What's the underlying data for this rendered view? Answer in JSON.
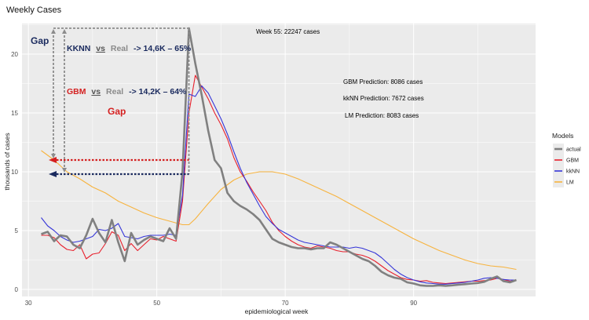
{
  "chart_data": {
    "type": "line",
    "title": "Weekly Cases",
    "xlabel": "epidemiological week",
    "ylabel": "thousands of cases",
    "xlim": [
      29,
      109
    ],
    "ylim": [
      -0.6,
      22.6
    ],
    "x_ticks": [
      30,
      50,
      70,
      90
    ],
    "y_ticks": [
      0,
      5,
      10,
      15,
      20
    ],
    "grid": true,
    "legend": {
      "title": "Models",
      "position": "right",
      "entries": [
        "actual",
        "GBM",
        "kkNN",
        "LM"
      ]
    },
    "colors": {
      "actual": "#808080",
      "GBM": "#e8212d",
      "kkNN": "#3636d8",
      "LM": "#f7b33e",
      "panel": "#ebebeb",
      "grid": "#ffffff",
      "navy": "#1a2a5e",
      "red": "#d42020"
    },
    "series": [
      {
        "name": "actual",
        "x": [
          32,
          33,
          34,
          35,
          36,
          37,
          38,
          39,
          40,
          41,
          42,
          43,
          44,
          45,
          46,
          47,
          48,
          49,
          50,
          51,
          52,
          53,
          54,
          55,
          56,
          57,
          58,
          59,
          60,
          61,
          62,
          63,
          64,
          65,
          66,
          67,
          68,
          69,
          70,
          71,
          72,
          73,
          74,
          75,
          76,
          77,
          78,
          79,
          80,
          81,
          82,
          83,
          84,
          85,
          86,
          87,
          88,
          89,
          90,
          91,
          92,
          93,
          94,
          95,
          96,
          97,
          98,
          99,
          100,
          101,
          102,
          103,
          104,
          105,
          106
        ],
        "values": [
          4.7,
          4.9,
          4.1,
          4.6,
          4.5,
          3.8,
          3.5,
          4.6,
          6.0,
          4.8,
          4.0,
          5.9,
          4.0,
          2.4,
          4.8,
          3.8,
          4.2,
          4.5,
          4.3,
          4.1,
          5.2,
          4.3,
          10.0,
          22.2,
          19.2,
          16.5,
          13.5,
          11.0,
          10.3,
          8.2,
          7.5,
          7.1,
          6.8,
          6.4,
          5.9,
          5.1,
          4.3,
          4.0,
          3.8,
          3.6,
          3.5,
          3.5,
          3.4,
          3.5,
          3.5,
          4.0,
          3.8,
          3.5,
          3.2,
          2.9,
          2.6,
          2.4,
          2.0,
          1.5,
          1.2,
          1.0,
          0.9,
          0.6,
          0.5,
          0.35,
          0.3,
          0.3,
          0.35,
          0.3,
          0.35,
          0.4,
          0.45,
          0.5,
          0.55,
          0.65,
          0.9,
          1.1,
          0.7,
          0.6,
          0.8
        ]
      },
      {
        "name": "GBM",
        "x": [
          32,
          33,
          34,
          35,
          36,
          37,
          38,
          39,
          40,
          41,
          42,
          43,
          44,
          45,
          46,
          47,
          48,
          49,
          50,
          51,
          52,
          53,
          54,
          55,
          56,
          57,
          58,
          59,
          60,
          61,
          62,
          63,
          64,
          65,
          66,
          67,
          68,
          69,
          70,
          71,
          72,
          73,
          74,
          75,
          76,
          77,
          78,
          79,
          80,
          81,
          82,
          83,
          84,
          85,
          86,
          87,
          88,
          89,
          90,
          91,
          92,
          93,
          94,
          95,
          96,
          97,
          98,
          99,
          100,
          101,
          102,
          103,
          104,
          105,
          106
        ],
        "values": [
          4.6,
          4.6,
          4.4,
          3.8,
          3.4,
          3.3,
          3.8,
          2.6,
          3.0,
          3.1,
          3.9,
          4.9,
          4.6,
          3.3,
          3.9,
          3.3,
          3.8,
          4.3,
          4.2,
          4.5,
          4.3,
          4.1,
          7.5,
          15.0,
          18.2,
          17.2,
          16.2,
          15.0,
          14.0,
          12.8,
          11.2,
          10.0,
          9.2,
          8.3,
          7.5,
          6.7,
          5.7,
          5.0,
          4.5,
          4.1,
          3.8,
          3.6,
          3.5,
          3.7,
          3.6,
          3.5,
          3.3,
          3.2,
          3.2,
          3.0,
          2.9,
          2.7,
          2.4,
          2.0,
          1.6,
          1.3,
          1.0,
          0.85,
          0.8,
          0.7,
          0.75,
          0.6,
          0.55,
          0.5,
          0.55,
          0.6,
          0.65,
          0.7,
          0.7,
          0.75,
          0.8,
          0.95,
          0.85,
          0.7,
          0.8
        ]
      },
      {
        "name": "kkNN",
        "x": [
          32,
          33,
          34,
          35,
          36,
          37,
          38,
          39,
          40,
          41,
          42,
          43,
          44,
          45,
          46,
          47,
          48,
          49,
          50,
          51,
          52,
          53,
          54,
          55,
          56,
          57,
          58,
          59,
          60,
          61,
          62,
          63,
          64,
          65,
          66,
          67,
          68,
          69,
          70,
          71,
          72,
          73,
          74,
          75,
          76,
          77,
          78,
          79,
          80,
          81,
          82,
          83,
          84,
          85,
          86,
          87,
          88,
          89,
          90,
          91,
          92,
          93,
          94,
          95,
          96,
          97,
          98,
          99,
          100,
          101,
          102,
          103,
          104,
          105,
          106
        ],
        "values": [
          6.1,
          5.4,
          5.0,
          4.5,
          4.2,
          4.0,
          4.1,
          4.3,
          4.5,
          5.1,
          5.0,
          5.2,
          5.6,
          4.5,
          4.4,
          4.3,
          4.5,
          4.6,
          4.6,
          4.6,
          4.7,
          4.6,
          8.0,
          16.6,
          16.4,
          17.3,
          16.7,
          15.6,
          14.5,
          13.2,
          11.7,
          10.3,
          9.1,
          8.1,
          7.1,
          6.2,
          5.6,
          5.1,
          4.8,
          4.5,
          4.2,
          4.0,
          3.9,
          3.8,
          3.7,
          3.6,
          3.6,
          3.6,
          3.5,
          3.6,
          3.5,
          3.3,
          3.1,
          2.7,
          2.2,
          1.7,
          1.3,
          1.0,
          0.8,
          0.65,
          0.55,
          0.5,
          0.45,
          0.45,
          0.5,
          0.55,
          0.6,
          0.7,
          0.8,
          0.95,
          1.0,
          0.95,
          0.85,
          0.8,
          0.8
        ]
      },
      {
        "name": "LM",
        "x": [
          32,
          34,
          36,
          38,
          40,
          42,
          44,
          46,
          48,
          50,
          52,
          54,
          55,
          56,
          58,
          60,
          62,
          64,
          66,
          68,
          70,
          72,
          74,
          76,
          78,
          80,
          82,
          84,
          86,
          88,
          90,
          92,
          94,
          96,
          98,
          100,
          102,
          104,
          106
        ],
        "values": [
          11.8,
          11.0,
          10.0,
          9.4,
          8.7,
          8.2,
          7.5,
          7.0,
          6.5,
          6.1,
          5.8,
          5.5,
          5.5,
          6.0,
          7.3,
          8.5,
          9.3,
          9.8,
          10.0,
          10.0,
          9.8,
          9.4,
          8.9,
          8.4,
          7.9,
          7.3,
          6.7,
          6.1,
          5.5,
          4.9,
          4.3,
          3.8,
          3.3,
          2.9,
          2.5,
          2.2,
          2.0,
          1.9,
          1.7
        ]
      }
    ],
    "annotations": [
      {
        "text": "Week 55: 22247 cases",
        "x": 55,
        "y": 22.2
      },
      {
        "text": "GBM Prediction: 8086 cases"
      },
      {
        "text": "kkNN Prediction: 7672 cases"
      },
      {
        "text": "LM Prediction: 8083 cases"
      }
    ],
    "overlays": {
      "gap_top": "Gap",
      "knn_1": "KKNN",
      "knn_vs": "vs",
      "knn_real": "Real",
      "knn_rest": "-> 14,6K – 65%",
      "gbm_1": "GBM",
      "gbm_vs": "vs",
      "gbm_real": "Real",
      "gbm_rest": "-> 14,2K – 64%",
      "gap_red": "Gap",
      "gbm_level": 11.0,
      "knn_level": 9.8
    }
  }
}
